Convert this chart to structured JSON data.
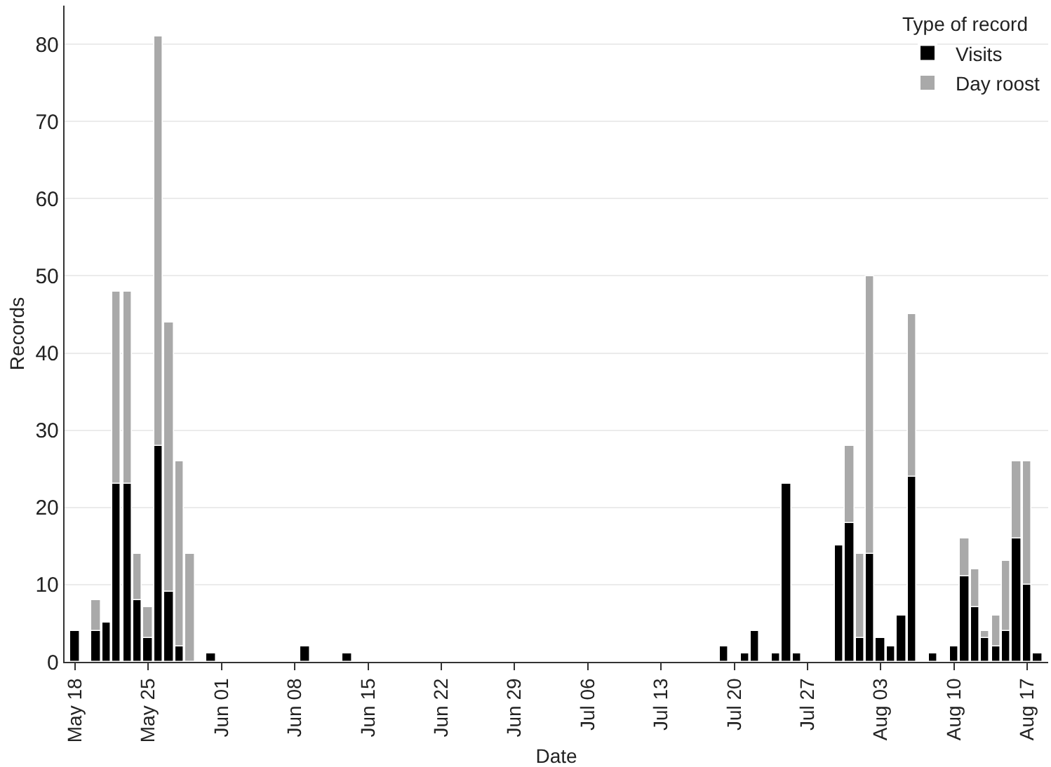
{
  "chart_data": {
    "type": "bar",
    "xlabel": "Date",
    "ylabel": "Records",
    "legend_title": "Type of record",
    "stacked": true,
    "grid": "y",
    "legend": "top right",
    "x": [
      "--05-18",
      "--05-20",
      "--05-21",
      "--05-22",
      "--05-23",
      "--05-24",
      "--05-25",
      "--05-26",
      "--05-27",
      "--05-28",
      "--05-29",
      "--05-31",
      "--06-09",
      "--06-13",
      "--07-19",
      "--07-21",
      "--07-22",
      "--07-24",
      "--07-25",
      "--07-26",
      "--07-30",
      "--07-31",
      "--08-01",
      "--08-02",
      "--08-03",
      "--08-04",
      "--08-05",
      "--08-06",
      "--08-08",
      "--08-10",
      "--08-11",
      "--08-12",
      "--08-13",
      "--08-14",
      "--08-15",
      "--08-16",
      "--08-17",
      "--08-18"
    ],
    "series": [
      {
        "name": "Visits",
        "color": "#000000",
        "values": [
          4,
          4,
          5,
          23,
          23,
          8,
          3,
          28,
          9,
          2,
          null,
          1,
          2,
          1,
          2,
          1,
          4,
          1,
          23,
          1,
          15,
          18,
          3,
          14,
          3,
          2,
          6,
          24,
          1,
          2,
          11,
          7,
          3,
          2,
          4,
          16,
          10,
          1
        ]
      },
      {
        "name": "Day roost",
        "color": "#a9a9a9",
        "values": [
          null,
          4,
          null,
          25,
          25,
          6,
          4,
          53,
          35,
          24,
          14,
          null,
          null,
          null,
          null,
          null,
          null,
          null,
          null,
          null,
          null,
          10,
          11,
          36,
          null,
          null,
          null,
          21,
          null,
          null,
          5,
          5,
          1,
          4,
          9,
          10,
          16,
          null
        ]
      }
    ],
    "xlim": [
      "--05-17",
      "--08-19"
    ],
    "xticks": [
      {
        "value": "--05-18",
        "label": "May 18"
      },
      {
        "value": "--05-25",
        "label": "May 25"
      },
      {
        "value": "--06-01",
        "label": "Jun 01"
      },
      {
        "value": "--06-08",
        "label": "Jun 08"
      },
      {
        "value": "--06-15",
        "label": "Jun 15"
      },
      {
        "value": "--06-22",
        "label": "Jun 22"
      },
      {
        "value": "--06-29",
        "label": "Jun 29"
      },
      {
        "value": "--07-06",
        "label": "Jul 06"
      },
      {
        "value": "--07-13",
        "label": "Jul 13"
      },
      {
        "value": "--07-20",
        "label": "Jul 20"
      },
      {
        "value": "--07-27",
        "label": "Jul 27"
      },
      {
        "value": "--08-03",
        "label": "Aug 03"
      },
      {
        "value": "--08-10",
        "label": "Aug 10"
      },
      {
        "value": "--08-17",
        "label": "Aug 17"
      }
    ],
    "ylim": [
      0,
      85
    ],
    "yticks": [
      0,
      10,
      20,
      30,
      40,
      50,
      60,
      70,
      80
    ]
  }
}
